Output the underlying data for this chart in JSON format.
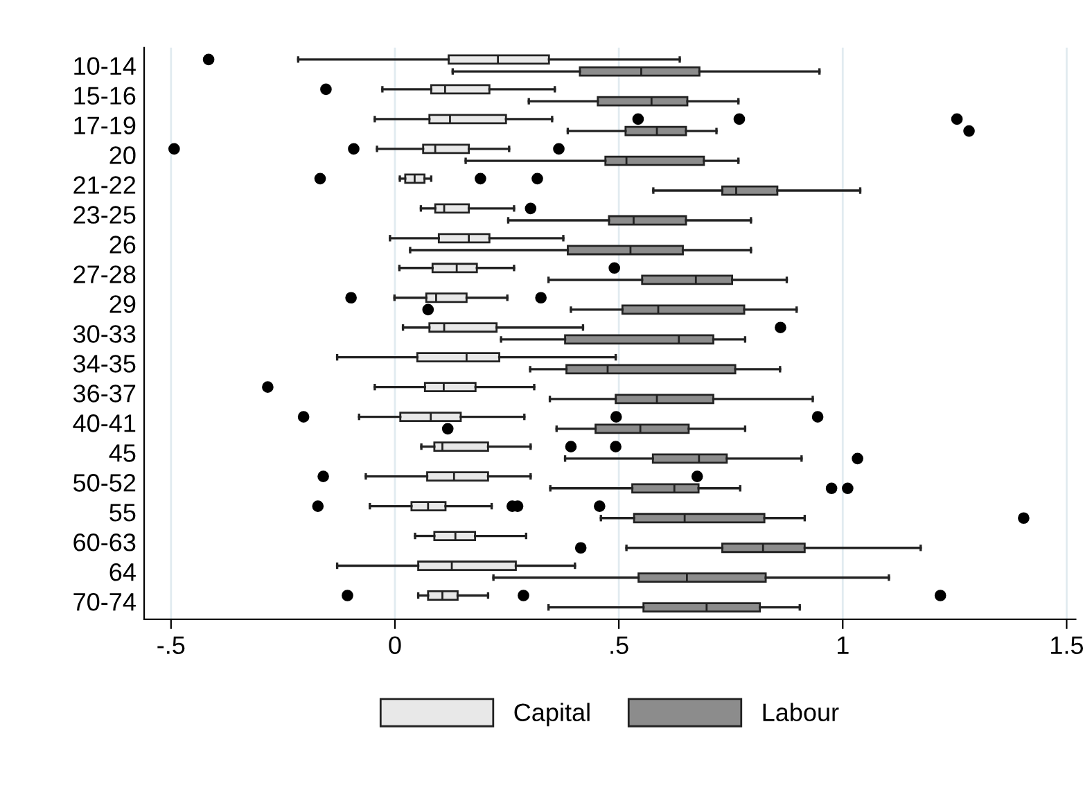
{
  "chart_data": {
    "type": "box",
    "orientation": "horizontal",
    "categories": [
      "10-14",
      "15-16",
      "17-19",
      "20",
      "21-22",
      "23-25",
      "26",
      "27-28",
      "29",
      "30-33",
      "34-35",
      "36-37",
      "40-41",
      "45",
      "50-52",
      "55",
      "60-63",
      "64",
      "70-74"
    ],
    "xlim": [
      -0.56,
      1.52
    ],
    "xticks": [
      {
        "value": -0.5,
        "label": "-.5"
      },
      0,
      {
        "value": 0.5,
        "label": ".5"
      },
      1,
      1.5
    ],
    "grid": "x",
    "legend": "bottom",
    "series": [
      {
        "name": "Capital",
        "color": "#e8e8e8",
        "boxes": [
          {
            "low": -0.216,
            "q1": 0.12,
            "median": 0.23,
            "q3": 0.344,
            "high": 0.636,
            "outliers": [
              -0.416
            ]
          },
          {
            "low": -0.028,
            "q1": 0.081,
            "median": 0.112,
            "q3": 0.211,
            "high": 0.357,
            "outliers": [
              -0.154
            ]
          },
          {
            "low": -0.045,
            "q1": 0.077,
            "median": 0.123,
            "q3": 0.248,
            "high": 0.351,
            "outliers": [
              0.543,
              0.769,
              1.255
            ]
          },
          {
            "low": -0.04,
            "q1": 0.063,
            "median": 0.09,
            "q3": 0.165,
            "high": 0.255,
            "outliers": [
              -0.493,
              -0.092,
              0.366
            ]
          },
          {
            "low": 0.011,
            "q1": 0.023,
            "median": 0.044,
            "q3": 0.066,
            "high": 0.081,
            "outliers": [
              -0.167,
              0.191,
              0.318
            ]
          },
          {
            "low": 0.058,
            "q1": 0.09,
            "median": 0.11,
            "q3": 0.165,
            "high": 0.266,
            "outliers": [
              0.303
            ]
          },
          {
            "low": -0.011,
            "q1": 0.098,
            "median": 0.165,
            "q3": 0.211,
            "high": 0.376
          },
          {
            "low": 0.01,
            "q1": 0.084,
            "median": 0.138,
            "q3": 0.183,
            "high": 0.266,
            "outliers": [
              0.49
            ]
          },
          {
            "low": -0.001,
            "q1": 0.07,
            "median": 0.092,
            "q3": 0.16,
            "high": 0.251,
            "outliers": [
              -0.098,
              0.326
            ]
          },
          {
            "low": 0.018,
            "q1": 0.077,
            "median": 0.11,
            "q3": 0.227,
            "high": 0.42,
            "outliers": [
              0.861
            ]
          },
          {
            "low": -0.129,
            "q1": 0.05,
            "median": 0.16,
            "q3": 0.233,
            "high": 0.493
          },
          {
            "low": -0.045,
            "q1": 0.067,
            "median": 0.109,
            "q3": 0.18,
            "high": 0.311,
            "outliers": [
              -0.284
            ]
          },
          {
            "low": -0.08,
            "q1": 0.012,
            "median": 0.08,
            "q3": 0.147,
            "high": 0.289,
            "outliers": [
              -0.204,
              0.494,
              0.944
            ]
          },
          {
            "low": 0.059,
            "q1": 0.088,
            "median": 0.106,
            "q3": 0.208,
            "high": 0.303,
            "outliers": [
              0.393,
              0.493
            ]
          },
          {
            "low": -0.065,
            "q1": 0.072,
            "median": 0.132,
            "q3": 0.208,
            "high": 0.303,
            "outliers": [
              -0.16,
              0.675
            ]
          },
          {
            "low": -0.056,
            "q1": 0.037,
            "median": 0.074,
            "q3": 0.113,
            "high": 0.216,
            "outliers": [
              -0.172,
              0.262,
              0.274,
              0.457
            ]
          },
          {
            "low": 0.045,
            "q1": 0.088,
            "median": 0.135,
            "q3": 0.179,
            "high": 0.293
          },
          {
            "low": -0.129,
            "q1": 0.052,
            "median": 0.127,
            "q3": 0.27,
            "high": 0.402
          },
          {
            "low": 0.052,
            "q1": 0.074,
            "median": 0.106,
            "q3": 0.14,
            "high": 0.208,
            "outliers": [
              -0.106,
              0.287,
              1.218
            ]
          }
        ]
      },
      {
        "name": "Labour",
        "color": "#8c8c8c",
        "boxes": [
          {
            "low": 0.129,
            "q1": 0.413,
            "median": 0.55,
            "q3": 0.68,
            "high": 0.948
          },
          {
            "low": 0.299,
            "q1": 0.453,
            "median": 0.573,
            "q3": 0.653,
            "high": 0.767
          },
          {
            "low": 0.386,
            "q1": 0.515,
            "median": 0.585,
            "q3": 0.65,
            "high": 0.718,
            "outliers": [
              1.282
            ]
          },
          {
            "low": 0.158,
            "q1": 0.47,
            "median": 0.517,
            "q3": 0.69,
            "high": 0.767
          },
          {
            "low": 0.577,
            "q1": 0.731,
            "median": 0.762,
            "q3": 0.854,
            "high": 1.039
          },
          {
            "low": 0.253,
            "q1": 0.478,
            "median": 0.533,
            "q3": 0.65,
            "high": 0.795
          },
          {
            "low": 0.034,
            "q1": 0.386,
            "median": 0.526,
            "q3": 0.643,
            "high": 0.795
          },
          {
            "low": 0.343,
            "q1": 0.552,
            "median": 0.672,
            "q3": 0.753,
            "high": 0.875
          },
          {
            "low": 0.393,
            "q1": 0.508,
            "median": 0.588,
            "q3": 0.78,
            "high": 0.897,
            "outliers": [
              0.074
            ]
          },
          {
            "low": 0.237,
            "q1": 0.38,
            "median": 0.634,
            "q3": 0.711,
            "high": 0.782
          },
          {
            "low": 0.302,
            "q1": 0.383,
            "median": 0.475,
            "q3": 0.76,
            "high": 0.86
          },
          {
            "low": 0.346,
            "q1": 0.493,
            "median": 0.585,
            "q3": 0.711,
            "high": 0.933
          },
          {
            "low": 0.361,
            "q1": 0.448,
            "median": 0.548,
            "q3": 0.656,
            "high": 0.782,
            "outliers": [
              0.118
            ]
          },
          {
            "low": 0.38,
            "q1": 0.576,
            "median": 0.679,
            "q3": 0.741,
            "high": 0.908,
            "outliers": [
              1.033
            ]
          },
          {
            "low": 0.347,
            "q1": 0.53,
            "median": 0.624,
            "q3": 0.678,
            "high": 0.771,
            "outliers": [
              0.975,
              1.011
            ]
          },
          {
            "low": 0.46,
            "q1": 0.534,
            "median": 0.647,
            "q3": 0.825,
            "high": 0.915,
            "outliers": [
              1.404
            ]
          },
          {
            "low": 0.517,
            "q1": 0.731,
            "median": 0.822,
            "q3": 0.915,
            "high": 1.174,
            "outliers": [
              0.415
            ]
          },
          {
            "low": 0.22,
            "q1": 0.544,
            "median": 0.652,
            "q3": 0.828,
            "high": 1.103
          },
          {
            "low": 0.343,
            "q1": 0.555,
            "median": 0.696,
            "q3": 0.815,
            "high": 0.904
          }
        ]
      }
    ]
  }
}
